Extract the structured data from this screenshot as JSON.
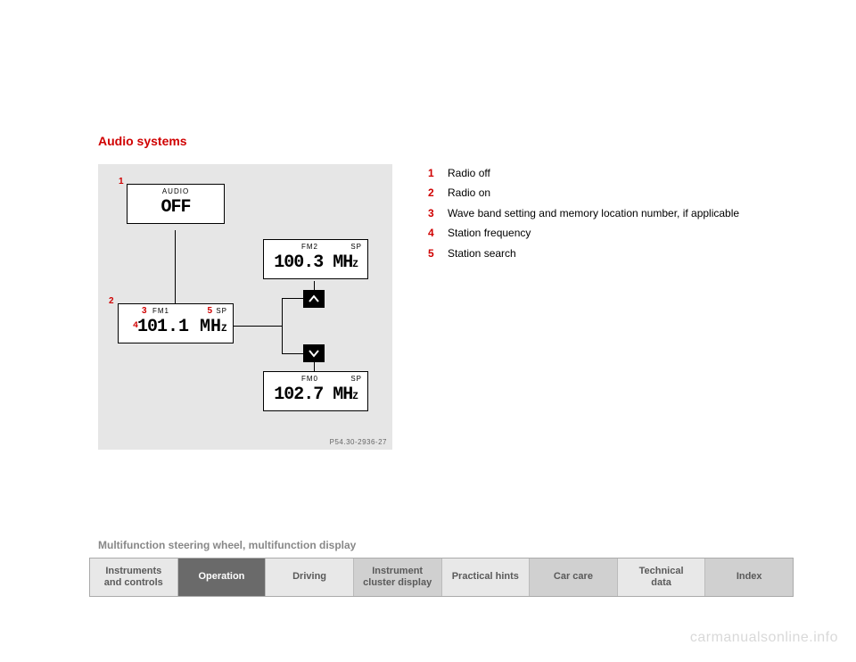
{
  "section_title": "Audio systems",
  "diagram": {
    "bg": "#e6e6e6",
    "fig_code": "P54.30-2936-27",
    "box_off": {
      "header": "AUDIO",
      "value": "OFF"
    },
    "box_main": {
      "band": "FM1",
      "sp": "SP",
      "value_prefix": "10",
      "value_rest": "1.1 MH",
      "value_sub": "Z"
    },
    "box_up": {
      "band": "FM2",
      "sp": "SP",
      "value": "100.3 MH",
      "value_sub": "Z"
    },
    "box_down": {
      "band": "FM0",
      "sp": "SP",
      "value": "102.7 MH",
      "value_sub": "Z"
    },
    "callouts": {
      "c1": "1",
      "c2": "2",
      "c3": "3",
      "c4": "4",
      "c5": "5"
    },
    "callout_color": "#d00000"
  },
  "legend": [
    {
      "num": "1",
      "text": "Radio off"
    },
    {
      "num": "2",
      "text": "Radio on"
    },
    {
      "num": "3",
      "text": "Wave band setting and memory location number, if applicable"
    },
    {
      "num": "4",
      "text": "Station frequency"
    },
    {
      "num": "5",
      "text": "Station search"
    }
  ],
  "footer_heading": "Multifunction steering wheel, multifunction display",
  "tabs": [
    {
      "label": "Instruments\nand controls",
      "bg": "#e8e8e8",
      "fg": "#5a5a5a"
    },
    {
      "label": "Operation",
      "bg": "#6a6a6a",
      "fg": "#ffffff"
    },
    {
      "label": "Driving",
      "bg": "#e8e8e8",
      "fg": "#5a5a5a"
    },
    {
      "label": "Instrument\ncluster display",
      "bg": "#d0d0d0",
      "fg": "#5a5a5a"
    },
    {
      "label": "Practical hints",
      "bg": "#e8e8e8",
      "fg": "#5a5a5a"
    },
    {
      "label": "Car care",
      "bg": "#d0d0d0",
      "fg": "#5a5a5a"
    },
    {
      "label": "Technical\ndata",
      "bg": "#e8e8e8",
      "fg": "#5a5a5a"
    },
    {
      "label": "Index",
      "bg": "#d0d0d0",
      "fg": "#5a5a5a"
    }
  ],
  "watermark": "carmanualsonline.info"
}
